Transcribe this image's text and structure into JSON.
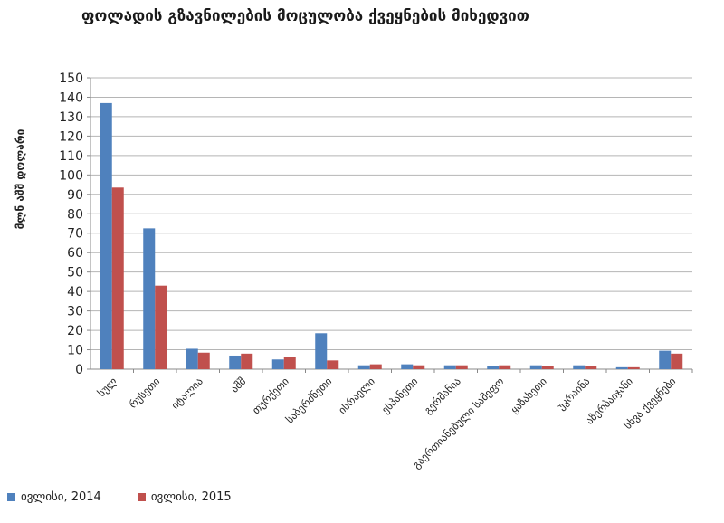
{
  "chart_data": {
    "type": "bar",
    "title": "ფოლადის გზავნილების მოცულობა ქვეყნების მიხედვით",
    "ylabel": "მლნ აშშ დოლარი",
    "xlabel": "",
    "ylim": [
      0,
      150
    ],
    "ytick_step": 10,
    "grid": true,
    "legend_position": "bottom-left",
    "categories": [
      "სულ",
      "რუსეთი",
      "იტალია",
      "აშშ",
      "თურქეთი",
      "საბერძნეთი",
      "ისრაელი",
      "ესპანეთი",
      "გერმანია",
      "გაერთიანებული სამეფო",
      "ყაზახეთი",
      "უკრაინა",
      "აზერბაიჯანი",
      "სხვა ქვეყნები"
    ],
    "series": [
      {
        "name": "ივლისი, 2014",
        "color": "#4f81bd",
        "values": [
          137,
          72.5,
          10.5,
          7,
          5,
          18.5,
          2,
          2.5,
          2,
          1.5,
          2,
          2,
          1,
          9.5
        ]
      },
      {
        "name": "ივლისი, 2015",
        "color": "#c0504d",
        "values": [
          93.5,
          43,
          8.5,
          8,
          6.5,
          4.5,
          2.5,
          2,
          2,
          2,
          1.5,
          1.5,
          1,
          8
        ]
      }
    ]
  }
}
